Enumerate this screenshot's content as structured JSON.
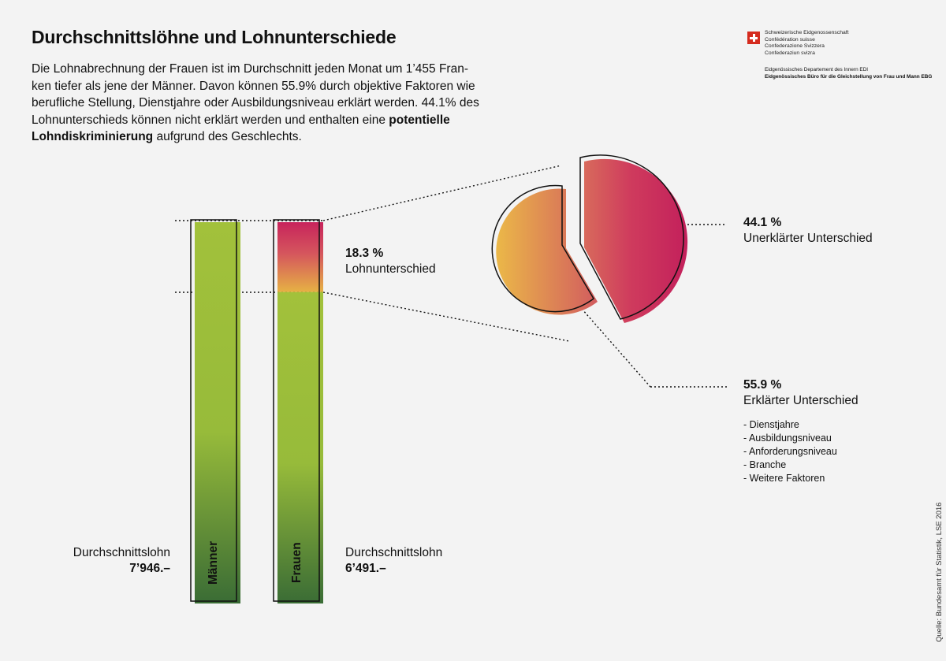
{
  "header": {
    "title": "Durchschnittslöhne und Lohnunterschiede",
    "intro_1": "Die Lohnabrechnung der Frauen ist im Durchschnitt jeden Monat um 1’455 Fran-",
    "intro_2": "ken tiefer als jene der Männer. Davon können 55.9% durch objektive Faktoren wie",
    "intro_3": "berufliche Stellung, Dienstjahre oder Ausbildungsniveau erklärt werden. 44.1% des",
    "intro_4": "Lohnunterschieds können nicht erklärt werden und enthalten eine ",
    "intro_bold_1": "potentielle",
    "intro_bold_2": "Lohndiskriminierung",
    "intro_5": " aufgrund des Geschlechts."
  },
  "logo": {
    "line1": "Schweizerische Eidgenossenschaft",
    "line2": "Confédération suisse",
    "line3": "Confederazione Svizzera",
    "line4": "Confederaziun svizra",
    "dept1": "Eidgenössisches Departement des Innern EDI",
    "dept2": "Eidgenössisches Büro für die Gleichstellung von Frau und Mann EBG"
  },
  "chart_data": {
    "type": "bar",
    "categories": [
      "Männer",
      "Frauen"
    ],
    "values": [
      7946,
      6491
    ],
    "value_labels": [
      "7’946.–",
      "6’491.–"
    ],
    "label_above_value": "Durchschnittslohn",
    "gap_percent": 18.3,
    "gap_label": "18.3 %",
    "gap_text": "Lohnunterschied",
    "breakdown": {
      "type": "pie",
      "slices": [
        {
          "value": 44.1,
          "label": "44.1 %",
          "name": "Unerklärter Unterschied"
        },
        {
          "value": 55.9,
          "label": "55.9 %",
          "name": "Erklärter Unterschied"
        }
      ]
    },
    "factors": [
      "- Dienstjahre",
      "- Ausbildungsniveau",
      "- Anforderungsniveau",
      "- Branche",
      "- Weitere Faktoren"
    ]
  },
  "colors": {
    "green_top": "#a2c13b",
    "green_bottom": "#3a6c35",
    "pink": "#c7245c",
    "orange": "#e6b144"
  },
  "source": "Quelle: Bundesamt für Statistik, LSE 2016"
}
